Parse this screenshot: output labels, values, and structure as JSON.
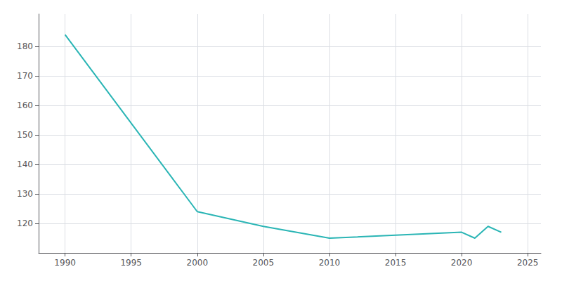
{
  "chart_data": {
    "type": "line",
    "x": [
      1990,
      2000,
      2005,
      2010,
      2015,
      2020,
      2021,
      2022,
      2023
    ],
    "values": [
      184,
      124,
      119,
      115,
      116,
      117,
      115,
      119,
      117
    ],
    "color": "#2ab5b5",
    "xlim": [
      1988,
      2026
    ],
    "ylim": [
      110,
      191
    ],
    "xticks": [
      1990,
      1995,
      2000,
      2005,
      2010,
      2015,
      2020,
      2025
    ],
    "yticks": [
      120,
      130,
      140,
      150,
      160,
      170,
      180
    ],
    "grid": true
  }
}
